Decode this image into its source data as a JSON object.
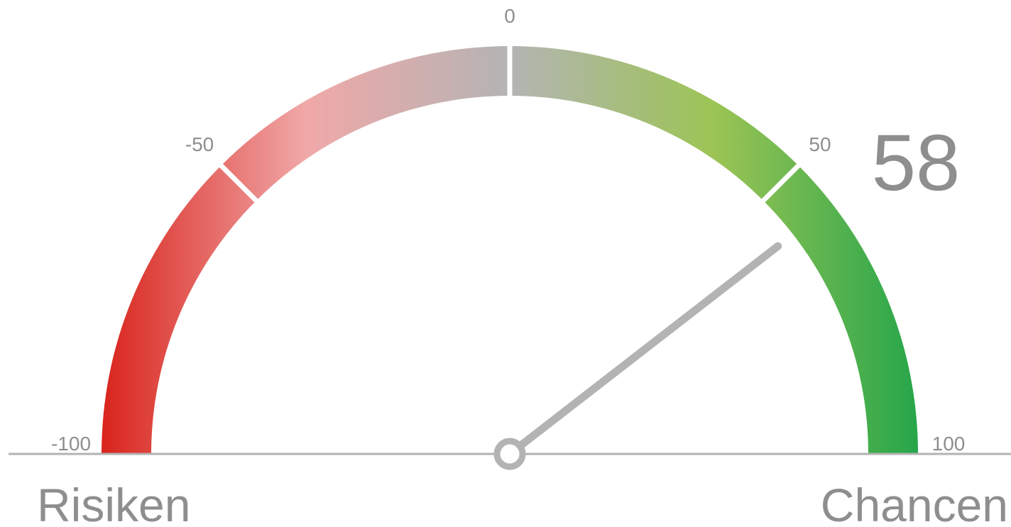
{
  "chart_data": {
    "type": "gauge",
    "value": 58,
    "range": [
      -100,
      100
    ],
    "ticks": [
      -100,
      -50,
      0,
      50,
      100
    ],
    "left_label": "Risiken",
    "right_label": "Chancen",
    "colors": [
      "#d9241c",
      "#f0a8a8",
      "#b4b4b4",
      "#9cc455",
      "#26a64a"
    ]
  }
}
